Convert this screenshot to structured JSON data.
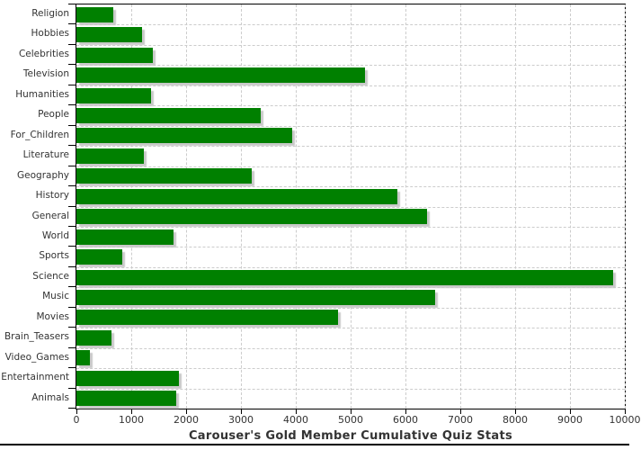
{
  "chart_data": {
    "type": "bar",
    "orientation": "horizontal",
    "title": "Carouser's Gold Member Cumulative Quiz Stats",
    "categories": [
      "Religion",
      "Hobbies",
      "Celebrities",
      "Television",
      "Humanities",
      "People",
      "For_Children",
      "Literature",
      "Geography",
      "History",
      "General",
      "World",
      "Sports",
      "Science",
      "Music",
      "Movies",
      "Brain_Teasers",
      "Video_Games",
      "Entertainment",
      "Animals"
    ],
    "values": [
      670,
      1200,
      1390,
      5260,
      1360,
      3360,
      3930,
      1230,
      3190,
      5850,
      6390,
      1770,
      840,
      9780,
      6540,
      4770,
      640,
      250,
      1870,
      1820
    ],
    "xlabel": "",
    "ylabel": "",
    "xlim": [
      0,
      10000
    ],
    "x_ticks": [
      0,
      1000,
      2000,
      3000,
      4000,
      5000,
      6000,
      7000,
      8000,
      9000,
      10000
    ],
    "grid": "dashed, vertical at each x tick and horizontal at each category boundary",
    "legend": "none",
    "colors": {
      "bar": "#008000",
      "bar_shadow": "#c9c9c9",
      "grid": "#cccccc",
      "axis": "#000000",
      "text": "#333333",
      "background": "#ffffff"
    }
  }
}
